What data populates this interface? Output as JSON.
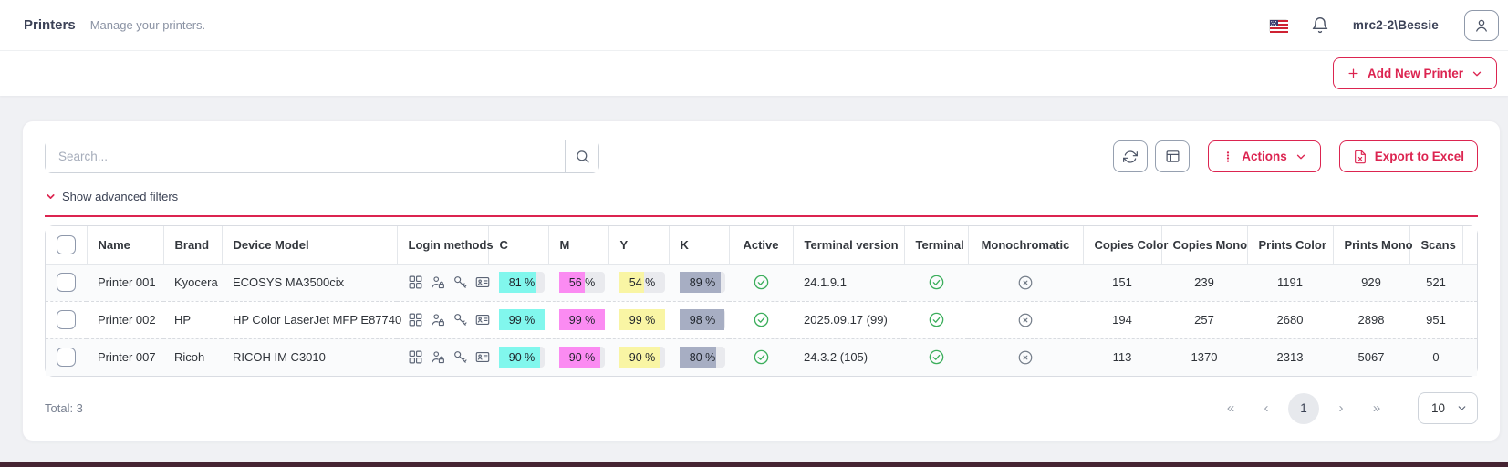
{
  "header": {
    "title": "Printers",
    "subtitle": "Manage your printers.",
    "username": "mrc2-2\\Bessie"
  },
  "actionbar": {
    "add_printer_label": "Add New Printer"
  },
  "controls": {
    "search_placeholder": "Search...",
    "actions_label": "Actions",
    "export_label": "Export to Excel",
    "show_filters_label": "Show advanced filters"
  },
  "table": {
    "columns": [
      "Name",
      "Brand",
      "Device Model",
      "Login methods",
      "C",
      "M",
      "Y",
      "K",
      "Active",
      "Terminal version",
      "Terminal",
      "Monochromatic",
      "Copies Color",
      "Copies Mono",
      "Prints Color",
      "Prints Mono",
      "Scans"
    ],
    "login_method_icons": [
      "keypad-icon",
      "user-lock-icon",
      "key-icon",
      "id-card-icon"
    ],
    "rows": [
      {
        "name": "Printer 001",
        "brand": "Kyocera",
        "model": "ECOSYS MA3500cix",
        "c": 81,
        "m": 56,
        "y": 54,
        "k": 89,
        "active": true,
        "terminal_version": "24.1.9.1",
        "terminal": true,
        "monochromatic": false,
        "copies_color": 151,
        "copies_mono": 239,
        "prints_color": 1191,
        "prints_mono": 929,
        "scans": 521
      },
      {
        "name": "Printer 002",
        "brand": "HP",
        "model": "HP Color LaserJet MFP E87740",
        "c": 99,
        "m": 99,
        "y": 99,
        "k": 98,
        "active": true,
        "terminal_version": "2025.09.17 (99)",
        "terminal": true,
        "monochromatic": false,
        "copies_color": 194,
        "copies_mono": 257,
        "prints_color": 2680,
        "prints_mono": 2898,
        "scans": 951
      },
      {
        "name": "Printer 007",
        "brand": "Ricoh",
        "model": "RICOH IM C3010",
        "c": 90,
        "m": 90,
        "y": 90,
        "k": 80,
        "active": true,
        "terminal_version": "24.3.2 (105)",
        "terminal": true,
        "monochromatic": false,
        "copies_color": 113,
        "copies_mono": 1370,
        "prints_color": 2313,
        "prints_mono": 5067,
        "scans": 0
      }
    ]
  },
  "footer": {
    "total_label": "Total: 3",
    "pagination": {
      "first": "«",
      "prev": "‹",
      "current_page": "1",
      "next": "›",
      "last": "»"
    },
    "page_size": "10"
  },
  "colors": {
    "accent": "#dc2450",
    "cyan": "#81f7ed",
    "magenta": "#fb8bf2",
    "yellow": "#f9f5a4",
    "key_black": "#a7aec3",
    "success_green": "#3cae5c",
    "inactive_gray": "#757e8a"
  }
}
